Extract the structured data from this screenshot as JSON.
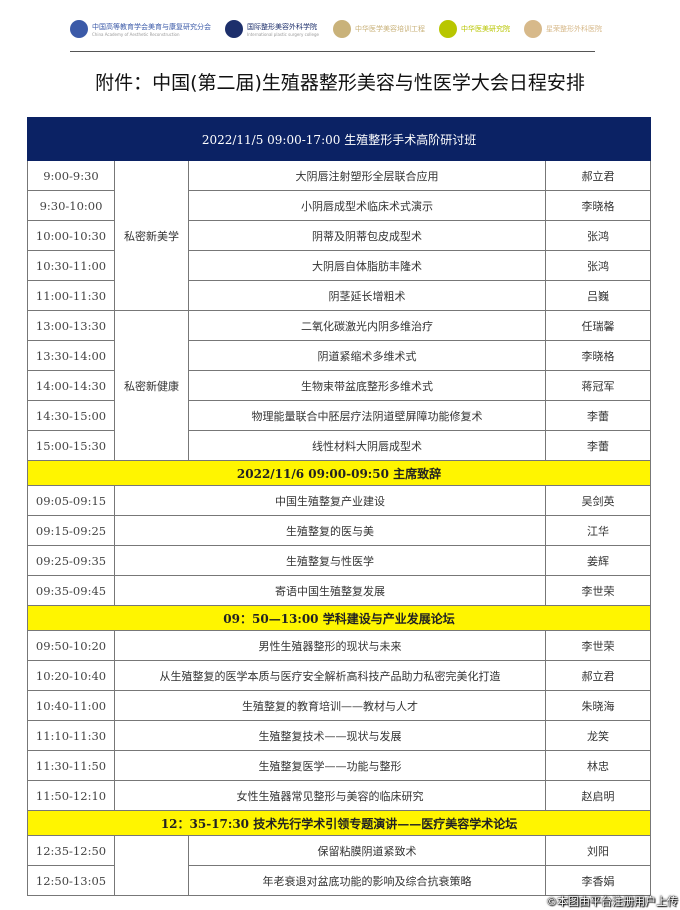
{
  "logos": [
    {
      "name": "中国高等教育学会美育与康复研究分会",
      "sub": "China Academy of Aesthetic Reconstruction",
      "color": "#3b5aa8"
    },
    {
      "name": "国际整形美容外科学院",
      "sub": "International plastic surgery college",
      "color": "#1d2f6b"
    },
    {
      "name": "中华医学美容培训工程",
      "sub": "",
      "color": "#c9b27a"
    },
    {
      "name": "中华医美研究院",
      "sub": "",
      "color": "#b8c600"
    },
    {
      "name": "星荣整形外科医院",
      "sub": "",
      "color": "#d7b98a"
    }
  ],
  "title": "附件：中国(第二届)生殖器整形美容与性医学大会日程安排",
  "sections": [
    {
      "header": "2022/11/5     09:00-17:00    生殖整形手术高阶研讨班",
      "style": "navy"
    },
    {
      "header": "2022/11/6    09:00-09:50    主席致辞",
      "style": "yellow"
    },
    {
      "header": "09：50—13:00  学科建设与产业发展论坛",
      "style": "yellow"
    },
    {
      "header": "12：35-17:30    技术先行学术引领专题演讲——医疗美容学术论坛",
      "style": "yellow"
    }
  ],
  "groups": {
    "g1": "私密新美学",
    "g2": "私密新健康"
  },
  "rows": [
    {
      "time": "9:00-9:30",
      "topic": "大阴唇注射塑形全层联合应用",
      "speaker": "郝立君"
    },
    {
      "time": "9:30-10:00",
      "topic": "小阴唇成型术临床术式演示",
      "speaker": "李晓格"
    },
    {
      "time": "10:00-10:30",
      "topic": "阴蒂及阴蒂包皮成型术",
      "speaker": "张鸿"
    },
    {
      "time": "10:30-11:00",
      "topic": "大阴唇自体脂肪丰隆术",
      "speaker": "张鸿"
    },
    {
      "time": "11:00-11:30",
      "topic": "阴茎延长增粗术",
      "speaker": "吕巍"
    },
    {
      "time": "13:00-13:30",
      "topic": "二氧化碳激光内阴多维治疗",
      "speaker": "任瑞馨"
    },
    {
      "time": "13:30-14:00",
      "topic": "阴道紧缩术多维术式",
      "speaker": "李晓格"
    },
    {
      "time": "14:00-14:30",
      "topic": "生物束带盆底整形多维术式",
      "speaker": "蒋冠军"
    },
    {
      "time": "14:30-15:00",
      "topic": "物理能量联合中胚层疗法阴道壁屏障功能修复术",
      "speaker": "李蕾"
    },
    {
      "time": "15:00-15:30",
      "topic": "线性材料大阴唇成型术",
      "speaker": "李蕾"
    },
    {
      "time": "09:05-09:15",
      "topic": "中国生殖整复产业建设",
      "speaker": "吴剑英"
    },
    {
      "time": "09:15-09:25",
      "topic": "生殖整复的医与美",
      "speaker": "江华"
    },
    {
      "time": "09:25-09:35",
      "topic": "生殖整复与性医学",
      "speaker": "姜辉"
    },
    {
      "time": "09:35-09:45",
      "topic": "寄语中国生殖整复发展",
      "speaker": "李世荣"
    },
    {
      "time": "09:50-10:20",
      "topic": "男性生殖器整形的现状与未来",
      "speaker": "李世荣"
    },
    {
      "time": "10:20-10:40",
      "topic": "从生殖整复的医学本质与医疗安全解析高科技产品助力私密完美化打造",
      "speaker": "郝立君"
    },
    {
      "time": "10:40-11:00",
      "topic": "生殖整复的教育培训——教材与人才",
      "speaker": "朱晓海"
    },
    {
      "time": "11:10-11:30",
      "topic": "生殖整复技术——现状与发展",
      "speaker": "龙笑"
    },
    {
      "time": "11:30-11:50",
      "topic": "生殖整复医学——功能与整形",
      "speaker": "林忠"
    },
    {
      "time": "11:50-12:10",
      "topic": "女性生殖器常见整形与美容的临床研究",
      "speaker": "赵启明"
    },
    {
      "time": "12:35-12:50",
      "topic": "保留粘膜阴道紧致术",
      "speaker": "刘阳"
    },
    {
      "time": "12:50-13:05",
      "topic": "年老衰退对盆底功能的影响及综合抗衰策略",
      "speaker": "李香娟"
    }
  ],
  "watermark": "©本图由平台注册用户上传"
}
